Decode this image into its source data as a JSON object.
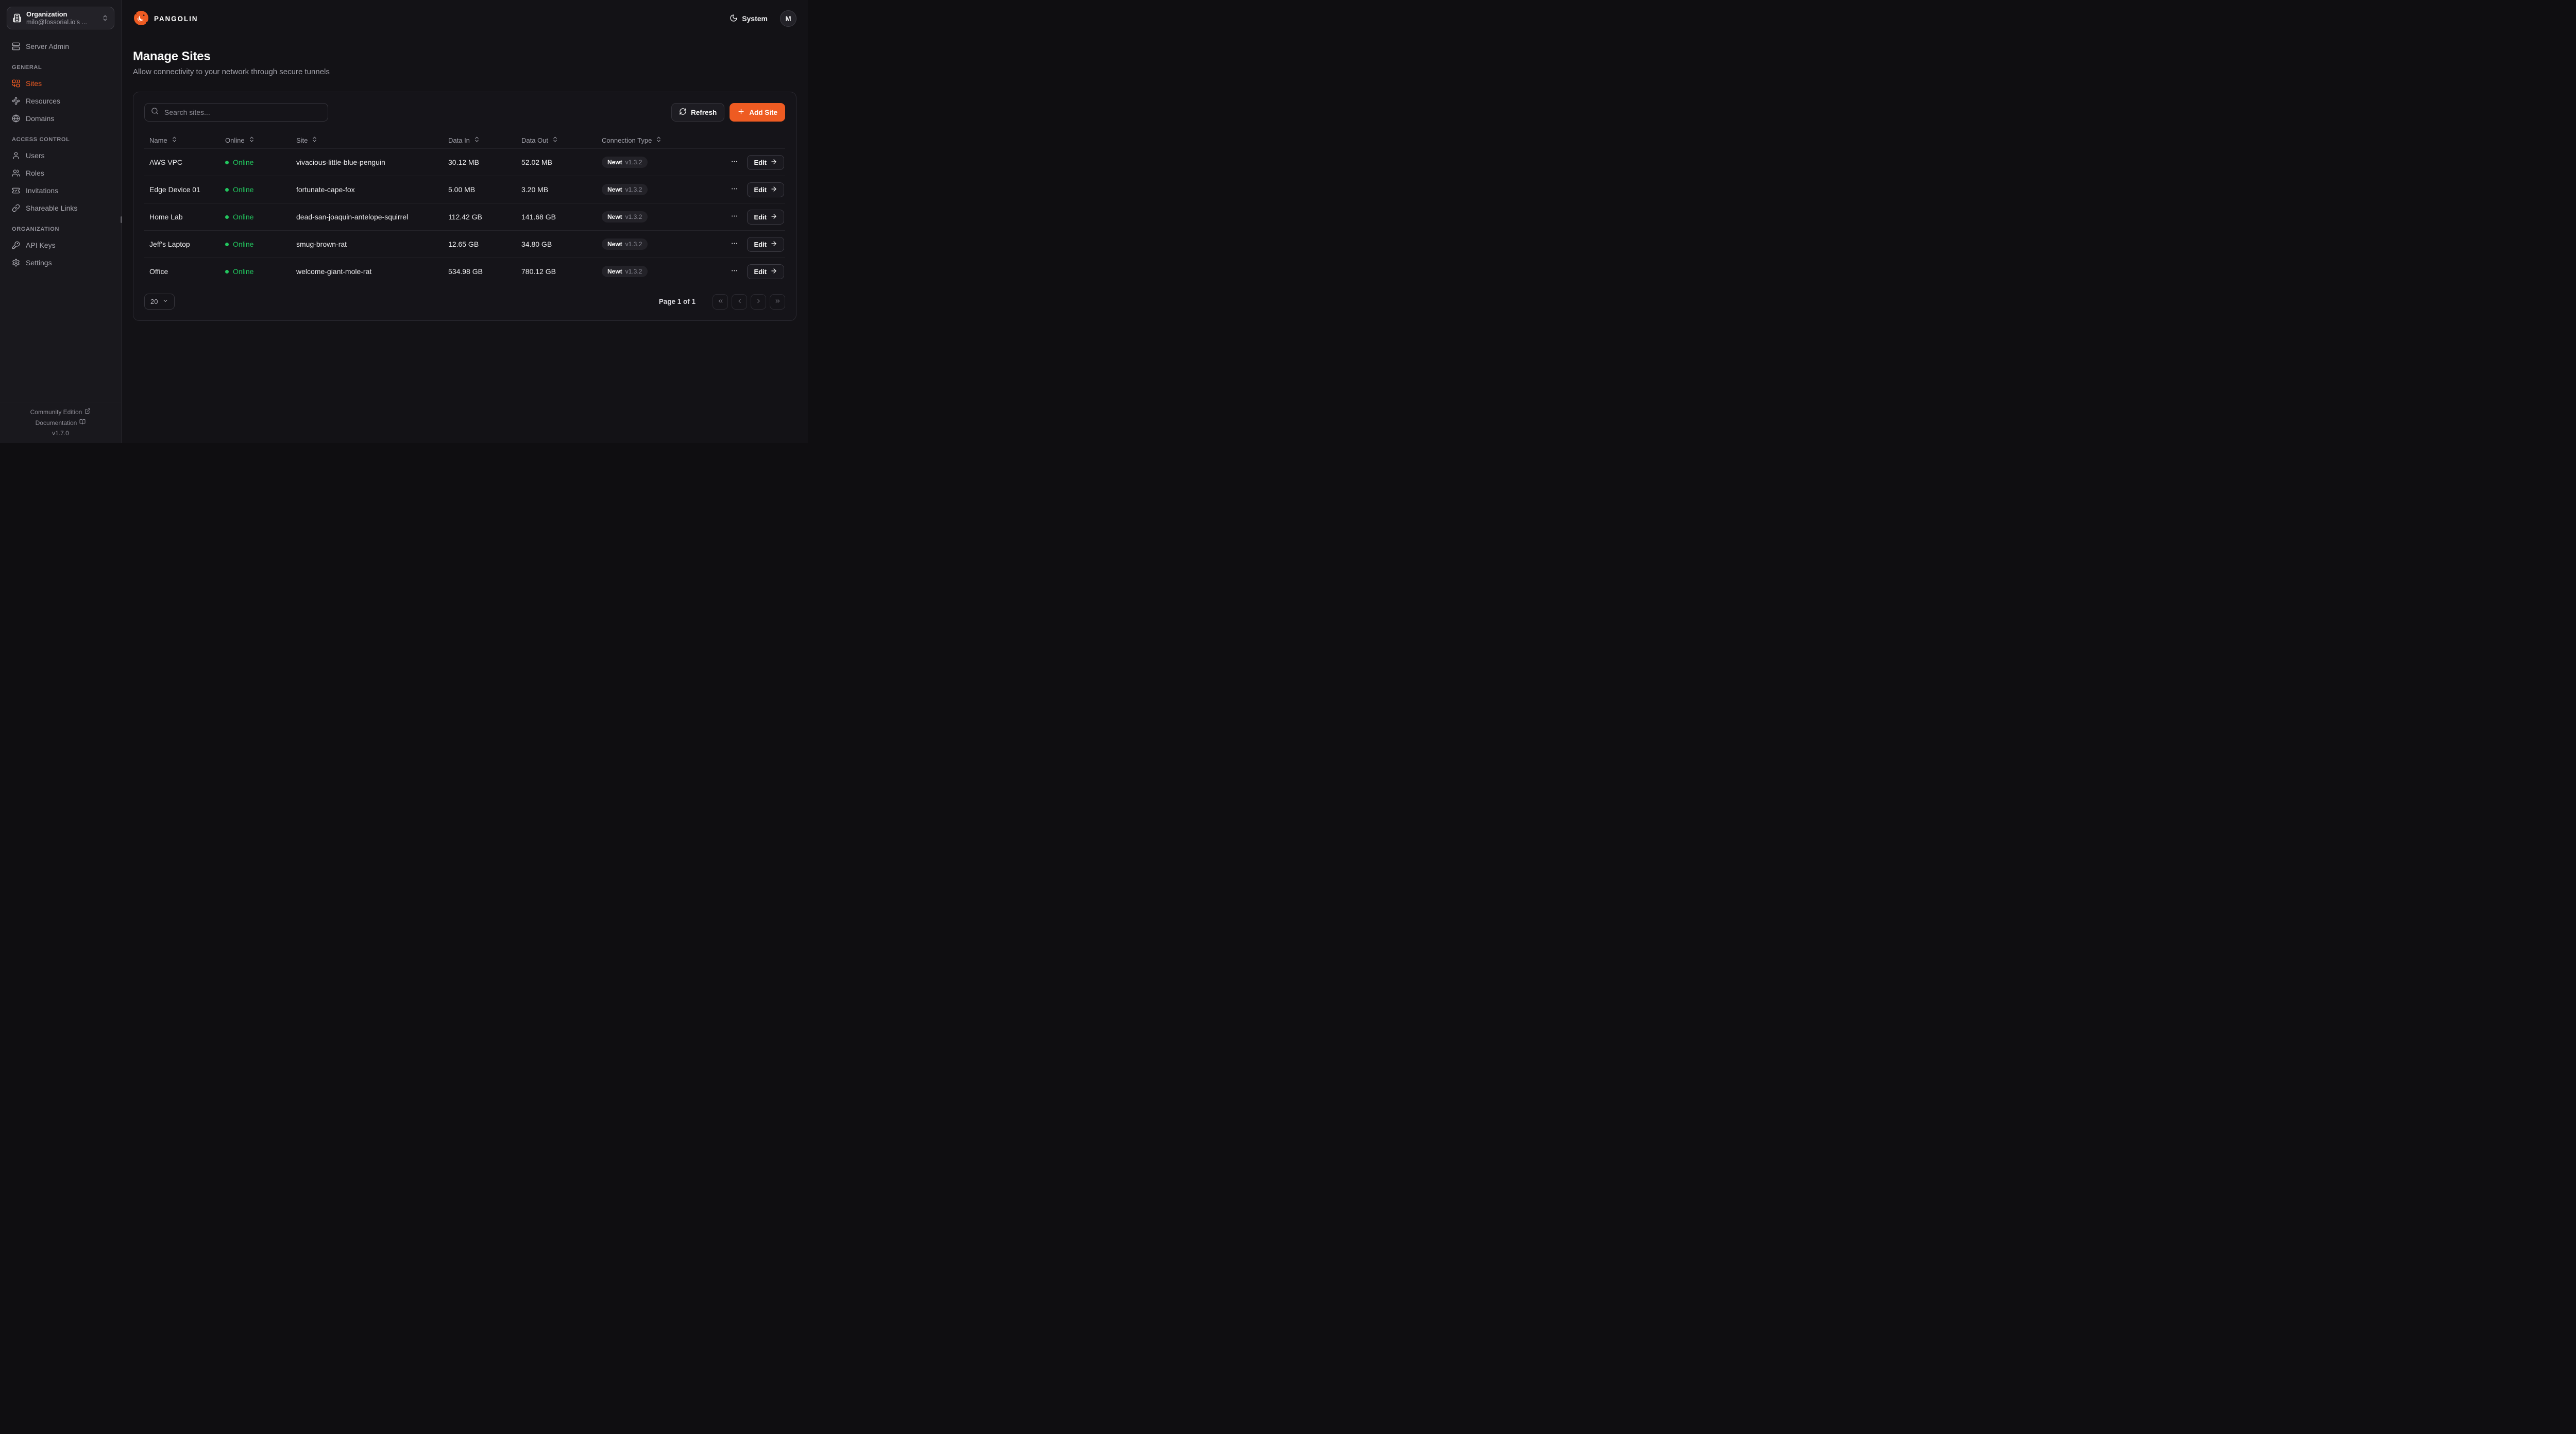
{
  "app": {
    "brand": "PANGOLIN",
    "theme_label": "System",
    "avatar_initial": "M"
  },
  "colors": {
    "accent": "#ee5b22",
    "online_green": "#22c55e",
    "background": "#131216",
    "sidebar_background": "#19181d"
  },
  "sidebar": {
    "org_picker": {
      "title": "Organization",
      "subtitle": "milo@fossorial.io's ...",
      "icon": "building-icon",
      "chevron_icon": "chevrons-up-down-icon"
    },
    "server_admin": {
      "label": "Server Admin",
      "icon": "server"
    },
    "sections": [
      {
        "label": "GENERAL",
        "items": [
          {
            "label": "Sites",
            "icon": "combine",
            "active": true
          },
          {
            "label": "Resources",
            "icon": "waypoints",
            "active": false
          },
          {
            "label": "Domains",
            "icon": "globe",
            "active": false
          }
        ]
      },
      {
        "label": "ACCESS CONTROL",
        "items": [
          {
            "label": "Users",
            "icon": "user",
            "active": false
          },
          {
            "label": "Roles",
            "icon": "users",
            "active": false
          },
          {
            "label": "Invitations",
            "icon": "ticket-check",
            "active": false
          },
          {
            "label": "Shareable Links",
            "icon": "link",
            "active": false
          }
        ]
      },
      {
        "label": "ORGANIZATION",
        "items": [
          {
            "label": "API Keys",
            "icon": "key-round",
            "active": false
          },
          {
            "label": "Settings",
            "icon": "settings",
            "active": false
          }
        ]
      }
    ],
    "footer": {
      "community": "Community Edition",
      "documentation": "Documentation",
      "version": "v1.7.0"
    }
  },
  "page": {
    "title": "Manage Sites",
    "subtitle": "Allow connectivity to your network through secure tunnels"
  },
  "toolbar": {
    "search_placeholder": "Search sites...",
    "refresh_label": "Refresh",
    "add_site_label": "Add Site"
  },
  "table": {
    "columns": [
      {
        "label": "Name"
      },
      {
        "label": "Online"
      },
      {
        "label": "Site"
      },
      {
        "label": "Data In"
      },
      {
        "label": "Data Out"
      },
      {
        "label": "Connection Type"
      }
    ],
    "rows": [
      {
        "name": "AWS VPC",
        "status": "Online",
        "site": "vivacious-little-blue-penguin",
        "data_in": "30.12 MB",
        "data_out": "52.02 MB",
        "connection": "Newt",
        "version": "v1.3.2",
        "edit_label": "Edit"
      },
      {
        "name": "Edge Device 01",
        "status": "Online",
        "site": "fortunate-cape-fox",
        "data_in": "5.00 MB",
        "data_out": "3.20 MB",
        "connection": "Newt",
        "version": "v1.3.2",
        "edit_label": "Edit"
      },
      {
        "name": "Home Lab",
        "status": "Online",
        "site": "dead-san-joaquin-antelope-squirrel",
        "data_in": "112.42 GB",
        "data_out": "141.68 GB",
        "connection": "Newt",
        "version": "v1.3.2",
        "edit_label": "Edit"
      },
      {
        "name": "Jeff's Laptop",
        "status": "Online",
        "site": "smug-brown-rat",
        "data_in": "12.65 GB",
        "data_out": "34.80 GB",
        "connection": "Newt",
        "version": "v1.3.2",
        "edit_label": "Edit"
      },
      {
        "name": "Office",
        "status": "Online",
        "site": "welcome-giant-mole-rat",
        "data_in": "534.98 GB",
        "data_out": "780.12 GB",
        "connection": "Newt",
        "version": "v1.3.2",
        "edit_label": "Edit"
      }
    ]
  },
  "pagination": {
    "page_size": "20",
    "page_info": "Page 1 of 1"
  }
}
